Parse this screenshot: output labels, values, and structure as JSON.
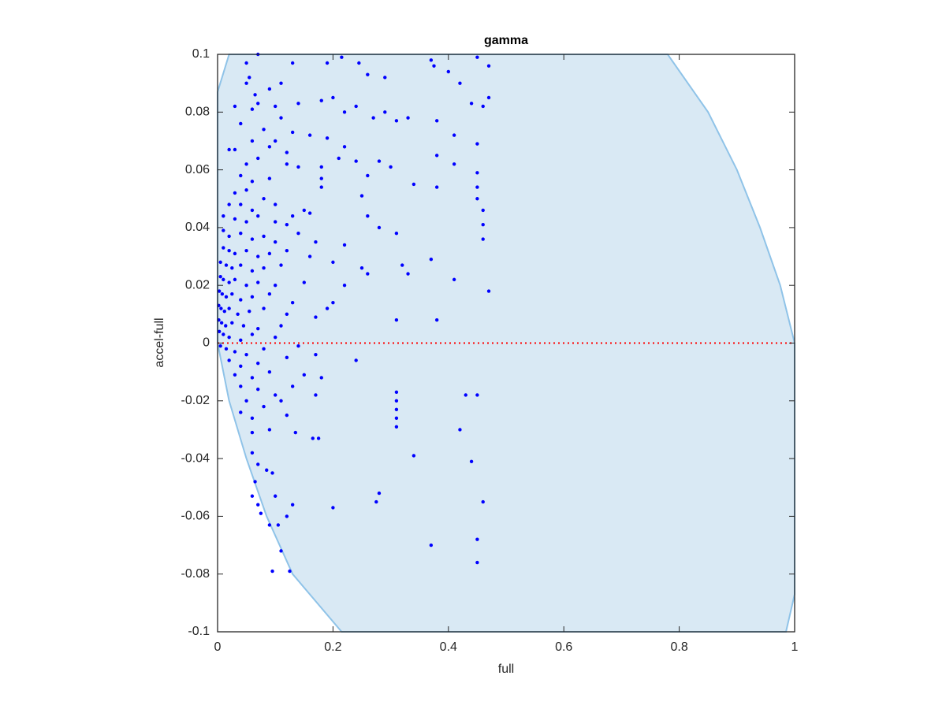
{
  "chart_data": {
    "type": "scatter",
    "title": "gamma",
    "xlabel": "full",
    "ylabel": "accel-full",
    "xlim": [
      0,
      1
    ],
    "ylim": [
      -0.1,
      0.1
    ],
    "xticks": [
      0,
      0.2,
      0.4,
      0.6,
      0.8,
      1
    ],
    "yticks": [
      -0.1,
      -0.08,
      -0.06,
      -0.04,
      -0.02,
      0,
      0.02,
      0.04,
      0.06,
      0.08,
      0.1
    ],
    "color": "#0000ff",
    "region": {
      "fill": "#d9e9f4",
      "edge": "#8fc3e8",
      "x": [
        0,
        0.02,
        0.78,
        0.85,
        0.9,
        0.94,
        0.975,
        1,
        1,
        0.985,
        0.215,
        0.13,
        0.085,
        0.05,
        0.02,
        0
      ],
      "y": [
        0.087,
        0.1,
        0.1,
        0.08,
        0.06,
        0.04,
        0.02,
        0,
        -0.087,
        -0.1,
        -0.1,
        -0.08,
        -0.06,
        -0.04,
        -0.02,
        0
      ]
    },
    "refline": {
      "y": 0,
      "color": "#ff0000"
    },
    "x": [
      0.05,
      0.07,
      0.055,
      0.05,
      0.065,
      0.09,
      0.11,
      0.13,
      0.19,
      0.215,
      0.245,
      0.26,
      0.29,
      0.37,
      0.375,
      0.4,
      0.42,
      0.45,
      0.47,
      0.03,
      0.06,
      0.07,
      0.1,
      0.11,
      0.14,
      0.18,
      0.2,
      0.22,
      0.24,
      0.29,
      0.44,
      0.46,
      0.47,
      0.04,
      0.08,
      0.1,
      0.13,
      0.16,
      0.27,
      0.31,
      0.33,
      0.38,
      0.06,
      0.09,
      0.12,
      0.19,
      0.22,
      0.41,
      0.45,
      0.02,
      0.03,
      0.05,
      0.07,
      0.12,
      0.14,
      0.18,
      0.21,
      0.24,
      0.28,
      0.3,
      0.38,
      0.41,
      0.04,
      0.06,
      0.09,
      0.18,
      0.26,
      0.34,
      0.45,
      0.03,
      0.05,
      0.08,
      0.1,
      0.18,
      0.25,
      0.38,
      0.45,
      0.02,
      0.04,
      0.06,
      0.13,
      0.16,
      0.26,
      0.45,
      0.46,
      0.01,
      0.03,
      0.05,
      0.07,
      0.1,
      0.12,
      0.15,
      0.28,
      0.31,
      0.46,
      0.46,
      0.01,
      0.02,
      0.04,
      0.06,
      0.08,
      0.1,
      0.14,
      0.17,
      0.22,
      0.37,
      0.01,
      0.02,
      0.03,
      0.05,
      0.07,
      0.09,
      0.12,
      0.16,
      0.25,
      0.32,
      0.005,
      0.015,
      0.025,
      0.04,
      0.06,
      0.08,
      0.11,
      0.2,
      0.26,
      0.33,
      0.41,
      0.005,
      0.01,
      0.02,
      0.03,
      0.05,
      0.07,
      0.1,
      0.15,
      0.22,
      0.47,
      0.003,
      0.008,
      0.015,
      0.025,
      0.04,
      0.06,
      0.09,
      0.13,
      0.2,
      0.002,
      0.006,
      0.012,
      0.02,
      0.035,
      0.055,
      0.08,
      0.12,
      0.19,
      0.002,
      0.007,
      0.014,
      0.025,
      0.045,
      0.07,
      0.11,
      0.17,
      0.31,
      0.38,
      0.003,
      0.01,
      0.02,
      0.04,
      0.06,
      0.1,
      0.005,
      0.015,
      0.03,
      0.05,
      0.08,
      0.14,
      0.02,
      0.04,
      0.07,
      0.12,
      0.17,
      0.24,
      0.03,
      0.06,
      0.09,
      0.15,
      0.04,
      0.07,
      0.1,
      0.13,
      0.18,
      0.05,
      0.08,
      0.11,
      0.04,
      0.06,
      0.12,
      0.06,
      0.09,
      0.17,
      0.31,
      0.31,
      0.31,
      0.31,
      0.31,
      0.43,
      0.45,
      0.42,
      0.135,
      0.165,
      0.175,
      0.06,
      0.07,
      0.095,
      0.34,
      0.44,
      0.065,
      0.085,
      0.06,
      0.1,
      0.07,
      0.13,
      0.28,
      0.275,
      0.2,
      0.46,
      0.075,
      0.12,
      0.09,
      0.105,
      0.45,
      0.37,
      0.11,
      0.095,
      0.125,
      0.45
    ],
    "y": [
      0.097,
      0.1,
      0.092,
      0.09,
      0.086,
      0.088,
      0.09,
      0.097,
      0.097,
      0.099,
      0.097,
      0.093,
      0.092,
      0.098,
      0.096,
      0.094,
      0.09,
      0.099,
      0.096,
      0.082,
      0.081,
      0.083,
      0.082,
      0.078,
      0.083,
      0.084,
      0.085,
      0.08,
      0.082,
      0.08,
      0.083,
      0.082,
      0.085,
      0.076,
      0.074,
      0.07,
      0.073,
      0.072,
      0.078,
      0.077,
      0.078,
      0.077,
      0.07,
      0.068,
      0.066,
      0.071,
      0.068,
      0.072,
      0.069,
      0.067,
      0.067,
      0.062,
      0.064,
      0.062,
      0.061,
      0.061,
      0.064,
      0.063,
      0.063,
      0.061,
      0.065,
      0.062,
      0.058,
      0.056,
      0.057,
      0.057,
      0.058,
      0.055,
      0.059,
      0.052,
      0.053,
      0.05,
      0.048,
      0.054,
      0.051,
      0.054,
      0.054,
      0.048,
      0.048,
      0.046,
      0.044,
      0.045,
      0.044,
      0.05,
      0.046,
      0.044,
      0.043,
      0.042,
      0.044,
      0.042,
      0.041,
      0.046,
      0.04,
      0.038,
      0.041,
      0.036,
      0.039,
      0.037,
      0.038,
      0.036,
      0.037,
      0.035,
      0.038,
      0.035,
      0.034,
      0.029,
      0.033,
      0.032,
      0.031,
      0.032,
      0.03,
      0.031,
      0.032,
      0.03,
      0.026,
      0.027,
      0.028,
      0.027,
      0.026,
      0.027,
      0.025,
      0.026,
      0.027,
      0.028,
      0.024,
      0.024,
      0.022,
      0.023,
      0.022,
      0.021,
      0.022,
      0.02,
      0.021,
      0.02,
      0.021,
      0.02,
      0.018,
      0.018,
      0.017,
      0.016,
      0.017,
      0.015,
      0.016,
      0.017,
      0.014,
      0.014,
      0.013,
      0.012,
      0.011,
      0.012,
      0.01,
      0.011,
      0.012,
      0.01,
      0.012,
      0.008,
      0.007,
      0.006,
      0.007,
      0.006,
      0.005,
      0.006,
      0.009,
      0.008,
      0.008,
      0.004,
      0.003,
      0.002,
      0.001,
      0.003,
      0.002,
      -0.001,
      -0.002,
      -0.003,
      -0.004,
      -0.002,
      -0.001,
      -0.006,
      -0.008,
      -0.007,
      -0.005,
      -0.004,
      -0.006,
      -0.011,
      -0.012,
      -0.01,
      -0.011,
      -0.015,
      -0.016,
      -0.018,
      -0.015,
      -0.012,
      -0.02,
      -0.022,
      -0.02,
      -0.024,
      -0.026,
      -0.025,
      -0.031,
      -0.03,
      -0.018,
      -0.017,
      -0.02,
      -0.023,
      -0.026,
      -0.029,
      -0.018,
      -0.018,
      -0.03,
      -0.031,
      -0.033,
      -0.033,
      -0.038,
      -0.042,
      -0.045,
      -0.039,
      -0.041,
      -0.048,
      -0.044,
      -0.053,
      -0.053,
      -0.056,
      -0.056,
      -0.052,
      -0.055,
      -0.057,
      -0.055,
      -0.059,
      -0.06,
      -0.063,
      -0.063,
      -0.068,
      -0.07,
      -0.072,
      -0.079,
      -0.079,
      -0.076
    ]
  }
}
